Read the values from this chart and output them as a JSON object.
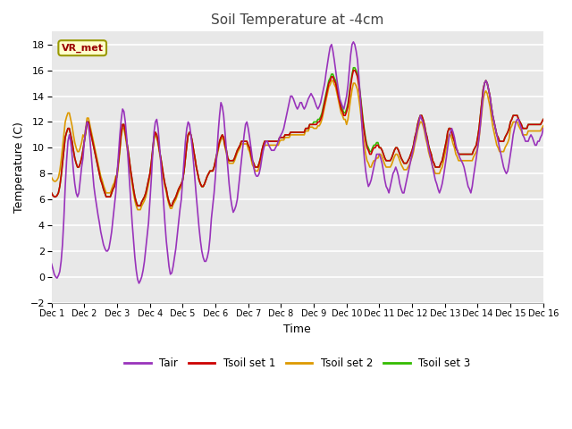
{
  "title": "Soil Temperature at -4cm",
  "xlabel": "Time",
  "ylabel": "Temperature (C)",
  "ylim": [
    -2,
    19
  ],
  "xlim": [
    0,
    360
  ],
  "outer_bg": "#ffffff",
  "plot_bg_color": "#e8e8e8",
  "colors": {
    "Tair": "#9933bb",
    "Tsoil1": "#cc0000",
    "Tsoil2": "#dd9900",
    "Tsoil3": "#33bb00"
  },
  "legend_labels": [
    "Tair",
    "Tsoil set 1",
    "Tsoil set 2",
    "Tsoil set 3"
  ],
  "annotation_text": "VR_met",
  "yticks": [
    -2,
    0,
    2,
    4,
    6,
    8,
    10,
    12,
    14,
    16,
    18
  ],
  "xtick_positions": [
    0,
    24,
    48,
    72,
    96,
    120,
    144,
    168,
    192,
    216,
    240,
    264,
    288,
    312,
    336,
    360
  ],
  "xtick_labels": [
    "Dec 1",
    "Dec 2",
    "Dec 3",
    "Dec 4",
    "Dec 5",
    "Dec 6",
    "Dec 7",
    "Dec 8",
    "Dec 9",
    "Dec 10",
    "Dec 11",
    "Dec 12",
    "Dec 13",
    "Dec 14",
    "Dec 15",
    "Dec 16"
  ],
  "linewidth": 1.2
}
